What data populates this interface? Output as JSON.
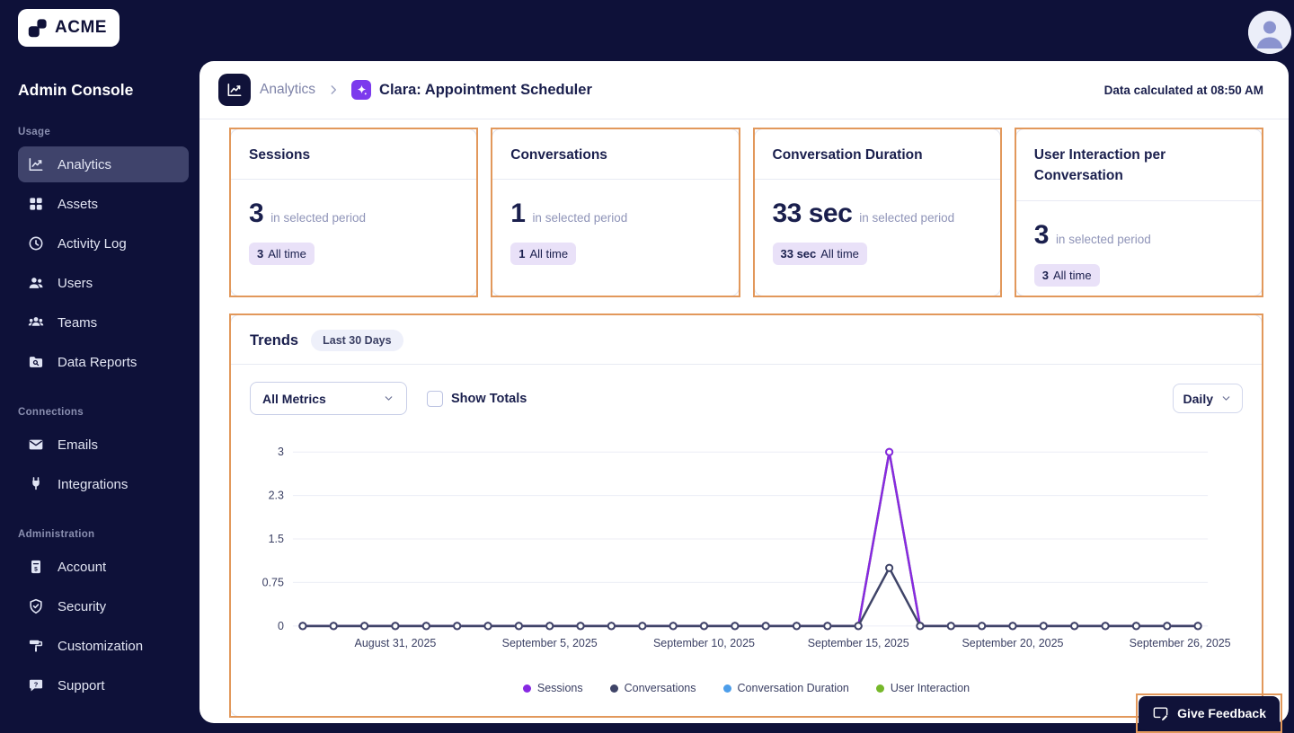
{
  "brand": {
    "logo_text": "ACME"
  },
  "topbar": {
    "calculated_at": "Data calculated at 08:50 AM"
  },
  "sidebar": {
    "title": "Admin Console",
    "sections": [
      {
        "label": "Usage",
        "items": [
          {
            "label": "Analytics",
            "icon": "analytics-icon",
            "active": true
          },
          {
            "label": "Assets",
            "icon": "assets-icon",
            "active": false
          },
          {
            "label": "Activity Log",
            "icon": "activity-log-icon",
            "active": false
          },
          {
            "label": "Users",
            "icon": "users-icon",
            "active": false
          },
          {
            "label": "Teams",
            "icon": "teams-icon",
            "active": false
          },
          {
            "label": "Data Reports",
            "icon": "data-reports-icon",
            "active": false
          }
        ]
      },
      {
        "label": "Connections",
        "items": [
          {
            "label": "Emails",
            "icon": "emails-icon",
            "active": false
          },
          {
            "label": "Integrations",
            "icon": "integrations-icon",
            "active": false
          }
        ]
      },
      {
        "label": "Administration",
        "items": [
          {
            "label": "Account",
            "icon": "account-icon",
            "active": false
          },
          {
            "label": "Security",
            "icon": "security-icon",
            "active": false
          },
          {
            "label": "Customization",
            "icon": "customization-icon",
            "active": false
          },
          {
            "label": "Support",
            "icon": "support-icon",
            "active": false
          }
        ]
      }
    ]
  },
  "breadcrumb": {
    "section": "Analytics",
    "page": "Clara: Appointment Scheduler"
  },
  "cards": [
    {
      "title": "Sessions",
      "value": "3",
      "period_label": "in selected period",
      "alltime_value": "3",
      "alltime_label": "All time"
    },
    {
      "title": "Conversations",
      "value": "1",
      "period_label": "in selected period",
      "alltime_value": "1",
      "alltime_label": "All time"
    },
    {
      "title": "Conversation Duration",
      "value": "33 sec",
      "period_label": "in selected period",
      "alltime_value": "33 sec",
      "alltime_label": "All time"
    },
    {
      "title": "User Interaction per Conversation",
      "value": "3",
      "period_label": "in selected period",
      "alltime_value": "3",
      "alltime_label": "All time"
    }
  ],
  "trends": {
    "title": "Trends",
    "range_pill": "Last 30 Days",
    "metrics_dropdown": "All Metrics",
    "show_totals_label": "Show Totals",
    "show_totals_checked": false,
    "granularity_dropdown": "Daily"
  },
  "chart_data": {
    "type": "line",
    "title": "Trends — Last 30 Days",
    "x_count": 30,
    "xticks": [
      {
        "index": 3,
        "label": "August 31, 2025"
      },
      {
        "index": 8,
        "label": "September 5, 2025"
      },
      {
        "index": 13,
        "label": "September 10, 2025"
      },
      {
        "index": 18,
        "label": "September 15, 2025"
      },
      {
        "index": 23,
        "label": "September 20, 2025"
      },
      {
        "index": 29,
        "label": "September 26, 2025"
      }
    ],
    "yticks": [
      {
        "value": 0,
        "label": "0"
      },
      {
        "value": 0.75,
        "label": "0.75"
      },
      {
        "value": 1.5,
        "label": "1.5"
      },
      {
        "value": 2.25,
        "label": "2.3"
      },
      {
        "value": 3,
        "label": "3"
      }
    ],
    "ylim": [
      0,
      3
    ],
    "grid": true,
    "legend_position": "bottom",
    "series": [
      {
        "name": "User Interaction",
        "color": "#76B82A",
        "values": [
          0,
          0,
          0,
          0,
          0,
          0,
          0,
          0,
          0,
          0,
          0,
          0,
          0,
          0,
          0,
          0,
          0,
          0,
          0,
          3,
          0,
          0,
          0,
          0,
          0,
          0,
          0,
          0,
          0,
          0
        ]
      },
      {
        "name": "Conversation Duration",
        "color": "#4D9EEA",
        "plotted": false,
        "values": []
      },
      {
        "name": "Sessions",
        "color": "#8729E2",
        "values": [
          0,
          0,
          0,
          0,
          0,
          0,
          0,
          0,
          0,
          0,
          0,
          0,
          0,
          0,
          0,
          0,
          0,
          0,
          0,
          3,
          0,
          0,
          0,
          0,
          0,
          0,
          0,
          0,
          0,
          0
        ]
      },
      {
        "name": "Conversations",
        "color": "#3F4468",
        "values": [
          0,
          0,
          0,
          0,
          0,
          0,
          0,
          0,
          0,
          0,
          0,
          0,
          0,
          0,
          0,
          0,
          0,
          0,
          0,
          1,
          0,
          0,
          0,
          0,
          0,
          0,
          0,
          0,
          0,
          0
        ]
      }
    ],
    "legend": [
      {
        "label": "Sessions",
        "color": "#8729E2"
      },
      {
        "label": "Conversations",
        "color": "#3F4468"
      },
      {
        "label": "Conversation Duration",
        "color": "#4D9EEA"
      },
      {
        "label": "User Interaction",
        "color": "#76B82A"
      }
    ]
  },
  "feedback": {
    "label": "Give Feedback"
  },
  "ui_colors": {
    "page_bg": "#0E1139",
    "annotation_highlight": "#E2985B",
    "active_nav_bg": "#3F436B",
    "badge_bg": "#E9E1F8",
    "agent_chip": "#7C3AED"
  }
}
